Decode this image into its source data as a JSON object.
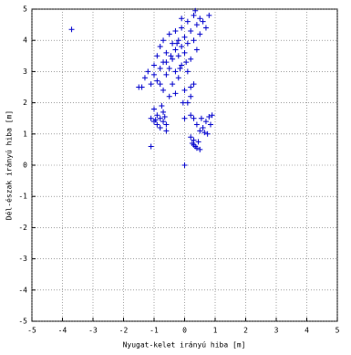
{
  "chart_data": {
    "type": "scatter",
    "xlabel": "Nyugat-kelet irányú hiba [m]",
    "ylabel": "Dél-észak irányú hiba [m]",
    "marker": "+",
    "color": "#0000cc",
    "grid": true,
    "xlim": [
      -5,
      5
    ],
    "ylim": [
      -5,
      5
    ],
    "xticks": [
      -5,
      -4,
      -3,
      -2,
      -1,
      0,
      1,
      2,
      3,
      4,
      5
    ],
    "yticks": [
      -5,
      -4,
      -3,
      -2,
      -1,
      0,
      1,
      2,
      3,
      4,
      5
    ],
    "x": [
      -1.4,
      -1.3,
      -1.2,
      -1.1,
      -1.0,
      -1.0,
      -0.9,
      -0.9,
      -0.8,
      -0.8,
      -0.7,
      -0.7,
      -0.7,
      -0.6,
      -0.6,
      -0.5,
      -0.5,
      -0.5,
      -0.4,
      -0.4,
      -0.4,
      -0.3,
      -0.3,
      -0.3,
      -0.2,
      -0.2,
      -0.2,
      -0.1,
      -0.1,
      -0.1,
      0.0,
      0.0,
      0.0,
      0.1,
      0.1,
      0.1,
      0.2,
      0.2,
      0.2,
      0.3,
      0.3,
      0.3,
      0.4,
      0.4,
      0.5,
      0.5,
      0.6,
      0.7,
      0.8,
      -0.6,
      -0.8,
      -0.3,
      0.1,
      0.2,
      -0.1,
      0.35,
      -0.15,
      -0.45,
      0.05,
      -0.25,
      -1.1,
      -1.0,
      -1.0,
      -0.9,
      -0.9,
      -0.8,
      -0.8,
      -0.7,
      -0.7,
      -0.6,
      -0.6,
      -0.75,
      -0.95,
      -0.65,
      0.4,
      0.5,
      0.55,
      0.6,
      0.7,
      0.75,
      0.8,
      0.85,
      0.9,
      0.65,
      0.3,
      0.2,
      0.2,
      0.25,
      0.3,
      0.35,
      0.4,
      0.45,
      0.5,
      0.3,
      -3.7,
      -1.1,
      0.0,
      -1.5,
      0.0,
      -0.05
    ],
    "y": [
      2.5,
      2.8,
      3.0,
      2.6,
      3.2,
      2.9,
      3.5,
      2.7,
      3.1,
      3.8,
      2.4,
      3.3,
      4.0,
      2.9,
      3.6,
      3.1,
      4.2,
      2.2,
      3.4,
      3.9,
      2.6,
      3.7,
      4.3,
      3.0,
      4.0,
      3.5,
      2.8,
      4.4,
      3.8,
      3.2,
      4.1,
      3.6,
      2.4,
      4.6,
      3.9,
      3.0,
      4.3,
      3.4,
      2.2,
      4.8,
      4.0,
      2.6,
      4.5,
      3.7,
      4.7,
      4.2,
      4.6,
      4.4,
      4.8,
      3.3,
      2.6,
      2.3,
      2.0,
      2.5,
      4.7,
      4.95,
      3.1,
      3.5,
      3.3,
      3.9,
      1.5,
      1.4,
      1.8,
      1.3,
      1.6,
      1.5,
      1.2,
      1.4,
      1.7,
      1.3,
      1.1,
      1.9,
      1.45,
      1.55,
      1.3,
      1.1,
      1.5,
      1.2,
      1.4,
      1.0,
      1.55,
      1.3,
      1.6,
      1.05,
      1.5,
      1.6,
      0.9,
      0.7,
      0.8,
      0.6,
      0.55,
      0.75,
      0.5,
      0.65,
      4.35,
      0.6,
      0.0,
      2.5,
      1.5,
      2.0
    ]
  }
}
